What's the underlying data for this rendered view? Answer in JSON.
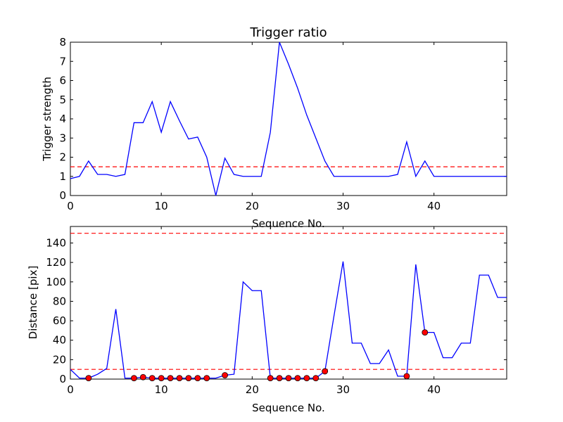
{
  "chart_data": [
    {
      "type": "line",
      "title": "Trigger ratio",
      "xlabel": "Sequence No.",
      "ylabel": "Trigger strength",
      "xlim": [
        0,
        48
      ],
      "ylim": [
        0,
        8
      ],
      "xticks": [
        "0",
        "10",
        "20",
        "30",
        "40"
      ],
      "yticks": [
        "0",
        "1",
        "2",
        "3",
        "4",
        "5",
        "6",
        "7",
        "8"
      ],
      "grid": false,
      "series": [
        {
          "color": "#0000ff",
          "style": "solid",
          "x": [
            0,
            1,
            2,
            3,
            4,
            5,
            6,
            7,
            8,
            9,
            10,
            11,
            12,
            13,
            14,
            15,
            16,
            17,
            18,
            19,
            20,
            21,
            22,
            23,
            24,
            25,
            26,
            27,
            28,
            29,
            30,
            31,
            32,
            33,
            34,
            35,
            36,
            37,
            38,
            39,
            40,
            41,
            42,
            43,
            44,
            45,
            46,
            47,
            48
          ],
          "y": [
            0.88,
            1.0,
            1.8,
            1.1,
            1.1,
            1.0,
            1.1,
            3.8,
            3.8,
            4.9,
            3.3,
            4.9,
            3.9,
            2.95,
            3.05,
            2.0,
            0.0,
            1.95,
            1.1,
            1.0,
            1.0,
            1.0,
            3.3,
            8.0,
            6.85,
            5.6,
            4.2,
            3.0,
            1.8,
            1.0,
            1.0,
            1.0,
            1.0,
            1.0,
            1.0,
            1.0,
            1.1,
            2.8,
            1.0,
            1.8,
            1.0,
            1.0,
            1.0,
            1.0,
            1.0,
            1.0,
            1.0,
            1.0,
            1.0
          ]
        }
      ],
      "hlines": [
        {
          "y": 1.5,
          "color": "#ff0000",
          "style": "dashed"
        }
      ]
    },
    {
      "type": "line",
      "title": "",
      "xlabel": "Sequence No.",
      "ylabel": "Distance [pix]",
      "xlim": [
        0,
        48
      ],
      "ylim": [
        0,
        157
      ],
      "xticks": [
        "0",
        "10",
        "20",
        "30",
        "40"
      ],
      "yticks": [
        "0",
        "20",
        "40",
        "60",
        "80",
        "100",
        "120",
        "140"
      ],
      "grid": false,
      "series": [
        {
          "color": "#0000ff",
          "style": "solid",
          "x": [
            0,
            1,
            2,
            3,
            4,
            5,
            6,
            7,
            8,
            9,
            10,
            11,
            12,
            13,
            14,
            15,
            16,
            17,
            18,
            19,
            20,
            21,
            22,
            23,
            24,
            25,
            26,
            27,
            28,
            29,
            30,
            31,
            32,
            33,
            34,
            35,
            36,
            37,
            38,
            39,
            40,
            41,
            42,
            43,
            44,
            45,
            46,
            47,
            48
          ],
          "y": [
            10,
            1,
            1,
            5,
            11,
            72,
            1,
            1,
            2,
            1,
            1,
            1,
            1,
            1,
            1,
            1,
            1,
            4,
            5,
            100,
            91,
            91,
            1,
            1,
            1,
            1,
            1,
            1,
            8,
            65,
            121,
            37,
            37,
            16,
            16,
            30,
            3,
            3,
            118,
            48,
            48,
            22,
            22,
            37,
            37,
            107,
            107,
            84,
            84
          ]
        }
      ],
      "markers": {
        "color": "#ff0000",
        "edge": "#000000",
        "x": [
          2,
          7,
          8,
          9,
          10,
          11,
          12,
          13,
          14,
          15,
          17,
          22,
          23,
          24,
          25,
          26,
          27,
          28,
          37,
          39
        ],
        "y": [
          1,
          1,
          2,
          1,
          1,
          1,
          1,
          1,
          1,
          1,
          4,
          1,
          1,
          1,
          1,
          1,
          1,
          8,
          3,
          48
        ]
      },
      "hlines": [
        {
          "y": 10,
          "color": "#ff0000",
          "style": "dashed"
        },
        {
          "y": 150,
          "color": "#ff0000",
          "style": "dashed"
        }
      ]
    }
  ]
}
